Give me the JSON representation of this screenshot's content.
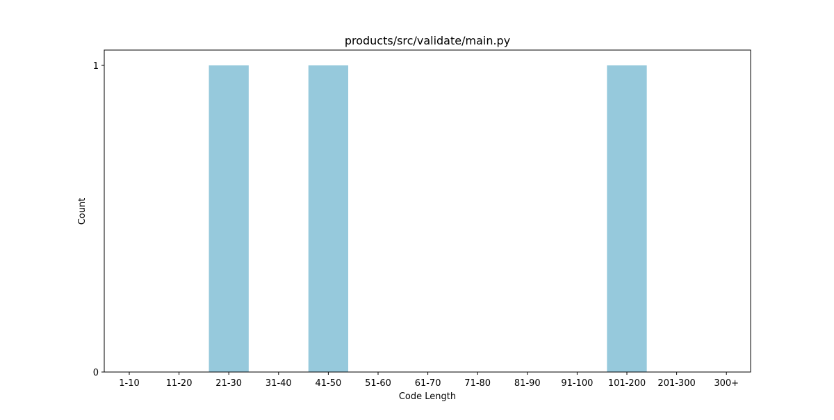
{
  "chart_data": {
    "type": "bar",
    "title": "products/src/validate/main.py",
    "xlabel": "Code Length",
    "ylabel": "Count",
    "categories": [
      "1-10",
      "11-20",
      "21-30",
      "31-40",
      "41-50",
      "51-60",
      "61-70",
      "71-80",
      "81-90",
      "91-100",
      "101-200",
      "201-300",
      "300+"
    ],
    "values": [
      0,
      0,
      1,
      0,
      1,
      0,
      0,
      0,
      0,
      0,
      1,
      0,
      0
    ],
    "ylim": [
      0,
      1.05
    ],
    "yticks": [
      0,
      1
    ],
    "grid": false,
    "bar_color": "#96c9dc"
  }
}
